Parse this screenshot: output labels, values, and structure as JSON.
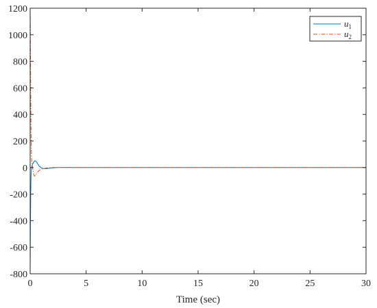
{
  "chart_data": {
    "type": "line",
    "title": "",
    "xlabel": "Time (sec)",
    "ylabel": "",
    "xlim": [
      0,
      30
    ],
    "ylim": [
      -800,
      1200
    ],
    "xticks": [
      0,
      5,
      10,
      15,
      20,
      25,
      30
    ],
    "yticks": [
      -800,
      -600,
      -400,
      -200,
      0,
      200,
      400,
      600,
      800,
      1000,
      1200
    ],
    "grid": false,
    "legend_position": "top-right",
    "series": [
      {
        "name": "u",
        "subscript": "1",
        "color": "#0072BD",
        "line_style": "solid",
        "x": [
          0,
          0.02,
          0.05,
          0.08,
          0.12,
          0.15,
          0.2,
          0.3,
          0.4,
          0.5,
          0.6,
          0.7,
          0.8,
          0.9,
          1.0,
          1.2,
          1.5,
          1.8,
          2.2,
          2.6,
          3.0,
          4.0,
          6.0,
          10.0,
          15.0,
          20.0,
          25.0,
          30.0
        ],
        "y": [
          -800,
          -500,
          -200,
          -60,
          0,
          10,
          22,
          40,
          50,
          48,
          38,
          25,
          12,
          4,
          -2,
          -8,
          -8,
          -4,
          -1,
          1,
          1,
          0,
          0,
          0,
          0,
          0,
          0,
          0
        ]
      },
      {
        "name": "u",
        "subscript": "2",
        "color": "#D95319",
        "line_style": "dashdot",
        "x": [
          0,
          0.01,
          0.02,
          0.04,
          0.06,
          0.08,
          0.1,
          0.12,
          0.15,
          0.2,
          0.25,
          0.3,
          0.35,
          0.4,
          0.5,
          0.6,
          0.8,
          1.0,
          1.2,
          1.5,
          1.8,
          2.2,
          2.6,
          3.0,
          4.0,
          6.0,
          10.0,
          15.0,
          20.0,
          25.0,
          30.0
        ],
        "y": [
          1200,
          1150,
          1000,
          700,
          450,
          260,
          140,
          80,
          40,
          10,
          -20,
          -45,
          -60,
          -65,
          -55,
          -40,
          -22,
          -12,
          -8,
          -3,
          0,
          1,
          1,
          0,
          0,
          0,
          0,
          0,
          0,
          0,
          0
        ]
      }
    ]
  }
}
